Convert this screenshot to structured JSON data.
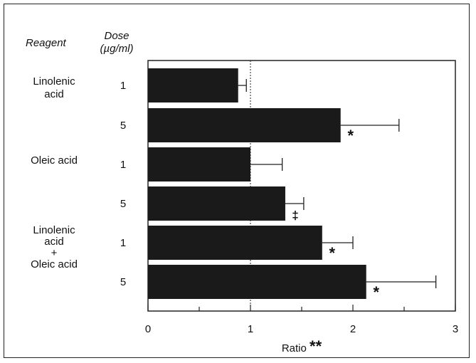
{
  "chart_data": {
    "type": "bar",
    "orientation": "horizontal",
    "column_headers": {
      "reagent": "Reagent",
      "dose_line1": "Dose",
      "dose_line2": "(µg/ml)"
    },
    "groups": [
      {
        "reagent_lines": [
          "Linolenic",
          "acid"
        ]
      },
      {
        "reagent_lines": [
          "Oleic acid"
        ]
      },
      {
        "reagent_lines": [
          "Linolenic",
          "acid",
          "+",
          "Oleic acid"
        ]
      }
    ],
    "bars": [
      {
        "dose": "1",
        "value": 0.88,
        "error": 0.08,
        "mark": ""
      },
      {
        "dose": "5",
        "value": 1.88,
        "error": 0.57,
        "mark": "*"
      },
      {
        "dose": "1",
        "value": 1.0,
        "error": 0.31,
        "mark": ""
      },
      {
        "dose": "5",
        "value": 1.34,
        "error": 0.18,
        "mark": "‡"
      },
      {
        "dose": "1",
        "value": 1.7,
        "error": 0.3,
        "mark": "*"
      },
      {
        "dose": "5",
        "value": 2.13,
        "error": 0.68,
        "mark": "*"
      }
    ],
    "xlabel": "Ratio **",
    "xlim": [
      0,
      3
    ],
    "xticks": [
      "0",
      "1",
      "2",
      "3"
    ],
    "reference_line": 1,
    "grid": false,
    "bar_color": "#1a1a1a"
  }
}
